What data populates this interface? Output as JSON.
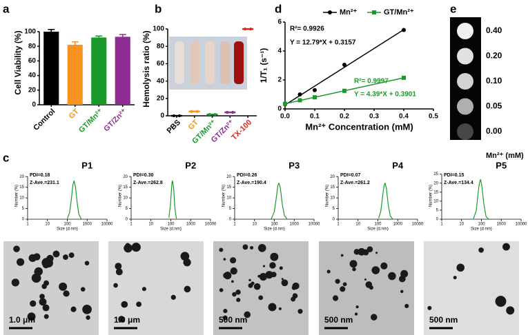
{
  "panel_labels": [
    "a",
    "b",
    "c",
    "d",
    "e"
  ],
  "chart_data": [
    {
      "type": "bar",
      "ylabel": "Cell Viability (%)",
      "categories": [
        "Control",
        "GT",
        "GT/Mn²⁺",
        "GT/Zn²⁺"
      ],
      "values": [
        100,
        82,
        92,
        93
      ],
      "errors": [
        3,
        4,
        2,
        3
      ],
      "colors": [
        "#000000",
        "#f7931e",
        "#1a9a2a",
        "#8e2d91"
      ],
      "ylim": [
        0,
        115
      ],
      "yticks": [
        0,
        20,
        40,
        60,
        80,
        100
      ]
    },
    {
      "type": "dot",
      "ylabel": "Hemolysis ratio (%)",
      "categories": [
        "PBS",
        "GT",
        "GT/Mn²⁺",
        "GT/Zn²⁺",
        "TX-100"
      ],
      "values": [
        0,
        5,
        1.5,
        4,
        100
      ],
      "colors": [
        "#000000",
        "#f7931e",
        "#1a9a2a",
        "#8e2d91",
        "#e0201b"
      ],
      "ylim": [
        0,
        108
      ],
      "yticks": [
        0,
        20,
        40,
        60,
        80,
        100
      ]
    },
    {
      "type": "scatter",
      "xlabel": "Mn²⁺ Concentration (mM)",
      "ylabel": "1/T₁ (s⁻¹)",
      "x": [
        0,
        0.05,
        0.1,
        0.2,
        0.4
      ],
      "series": [
        {
          "name": "Mn²⁺",
          "color": "#000000",
          "values": [
            0.33,
            1.0,
            1.3,
            3.05,
            5.45
          ]
        },
        {
          "name": "GT/Mn²⁺",
          "color": "#1a9a2a",
          "values": [
            0.35,
            0.6,
            0.8,
            1.25,
            2.15
          ]
        }
      ],
      "annotations": [
        "R²= 0.9926",
        "Y = 12.79*X + 0.3157",
        "R²= 0.9997",
        "Y = 4.39*X + 0.3901"
      ],
      "xlim": [
        0,
        0.5
      ],
      "xticks": [
        {
          "value": 0,
          "label": "0.0"
        },
        0.1,
        0.2,
        0.3,
        0.4,
        0.5
      ],
      "ylim": [
        0,
        6
      ],
      "yticks": [
        0,
        2,
        4,
        6
      ]
    },
    {
      "type": "line",
      "title": "P1",
      "annotations": [
        "PDI=0.18",
        "Z-Ave.=231.1"
      ],
      "xlabel": "Size (d.nm)",
      "ylabel": "Number (%)",
      "log_x": true,
      "color": "#1a9a2a",
      "x": [
        100,
        130,
        160,
        190,
        220,
        260,
        310,
        380,
        500
      ],
      "values": [
        0.3,
        3,
        9.3,
        15.9,
        18,
        15,
        8.2,
        2.4,
        0.2
      ],
      "xlim": [
        1,
        10000
      ],
      "xticks": [
        1,
        10,
        100,
        1000,
        10000
      ],
      "ylim": [
        0,
        22
      ],
      "yticks": [
        0,
        5,
        10,
        15,
        20
      ]
    },
    {
      "type": "line",
      "title": "P2",
      "annotations": [
        "PDI=0.30",
        "Z-Ave.=262.8"
      ],
      "xlabel": "Size (d.nm)",
      "ylabel": "Number (%)",
      "log_x": true,
      "color": "#1a9a2a",
      "x": [
        80,
        95,
        105,
        115,
        120,
        125,
        140,
        160,
        190
      ],
      "values": [
        0.7,
        6.5,
        12.4,
        17.3,
        18,
        17.3,
        14,
        5.2,
        0.3
      ],
      "xlim": [
        1,
        10000
      ],
      "xticks": [
        1,
        10,
        100,
        1000,
        10000
      ],
      "ylim": [
        0,
        22
      ],
      "yticks": [
        0,
        5,
        10,
        15,
        20
      ]
    },
    {
      "type": "line",
      "title": "P3",
      "annotations": [
        "PDI=0.26",
        "Z-Ave.=190.4"
      ],
      "xlabel": "Size (d.nm)",
      "ylabel": "Number (%)",
      "log_x": true,
      "color": "#1a9a2a",
      "x": [
        70,
        100,
        130,
        150,
        170,
        200,
        250,
        320,
        450
      ],
      "values": [
        0.2,
        3.6,
        11.2,
        15.8,
        17,
        14.7,
        7.2,
        1.7,
        0
      ],
      "xlim": [
        1,
        10000
      ],
      "xticks": [
        1,
        10,
        100,
        1000,
        10000
      ],
      "ylim": [
        0,
        22
      ],
      "yticks": [
        0,
        5,
        10,
        15,
        20
      ]
    },
    {
      "type": "line",
      "title": "P4",
      "annotations": [
        "PDI=0.07",
        "Z-Ave.=261.2"
      ],
      "xlabel": "Size (d.nm)",
      "ylabel": "Number (%)",
      "log_x": true,
      "color": "#1a9a2a",
      "x": [
        110,
        140,
        180,
        210,
        230,
        270,
        330,
        420,
        550
      ],
      "values": [
        0.5,
        3.7,
        12,
        16.1,
        17,
        14.3,
        7,
        1.6,
        0.1
      ],
      "xlim": [
        1,
        10000
      ],
      "xticks": [
        1,
        10,
        100,
        1000,
        10000
      ],
      "ylim": [
        0,
        22
      ],
      "yticks": [
        0,
        5,
        10,
        15,
        20
      ]
    },
    {
      "type": "line",
      "title": "P5",
      "annotations": [
        "PDI=0.15",
        "Z-Ave.=134.4"
      ],
      "xlabel": "Size (d.nm)",
      "ylabel": "Number (%)",
      "log_x": true,
      "color": "#1a9a2a",
      "x": [
        40,
        55,
        70,
        80,
        90,
        105,
        130,
        170,
        230
      ],
      "values": [
        0.3,
        4.8,
        15.6,
        20.2,
        22,
        18.6,
        9.1,
        1.5,
        0
      ],
      "xlim": [
        1,
        10000
      ],
      "xticks": [
        1,
        10,
        100,
        1000,
        10000
      ],
      "ylim": [
        0,
        26
      ],
      "yticks": [
        0,
        5,
        10,
        15,
        20,
        25
      ]
    }
  ],
  "panel_e": {
    "labels": [
      "0.40",
      "0.20",
      "0.10",
      "0.05",
      "0.00"
    ],
    "unit": "Mn²⁺ (mM)"
  },
  "tem_scale_bars": [
    "1.0 μm",
    "1.0 μm",
    "500 nm",
    "500 nm",
    "500 nm"
  ]
}
